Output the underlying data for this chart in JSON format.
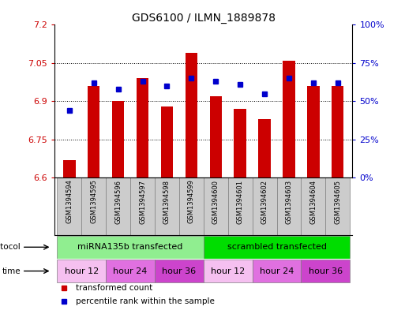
{
  "title": "GDS6100 / ILMN_1889878",
  "samples": [
    "GSM1394594",
    "GSM1394595",
    "GSM1394596",
    "GSM1394597",
    "GSM1394598",
    "GSM1394599",
    "GSM1394600",
    "GSM1394601",
    "GSM1394602",
    "GSM1394603",
    "GSM1394604",
    "GSM1394605"
  ],
  "bar_values": [
    6.67,
    6.96,
    6.9,
    6.99,
    6.88,
    7.09,
    6.92,
    6.87,
    6.83,
    7.06,
    6.96,
    6.96
  ],
  "dot_values": [
    44,
    62,
    58,
    63,
    60,
    65,
    63,
    61,
    55,
    65,
    62,
    62
  ],
  "ymin": 6.6,
  "ymax": 7.2,
  "yticks": [
    6.6,
    6.75,
    6.9,
    7.05,
    7.2
  ],
  "ytick_labels": [
    "6.6",
    "6.75",
    "6.9",
    "7.05",
    "7.2"
  ],
  "right_yticks": [
    0,
    25,
    50,
    75,
    100
  ],
  "right_ytick_labels": [
    "0%",
    "25%",
    "50%",
    "75%",
    "100%"
  ],
  "bar_color": "#cc0000",
  "dot_color": "#0000cc",
  "bar_bottom": 6.6,
  "grid_lines": [
    6.75,
    6.9,
    7.05
  ],
  "protocol_groups": [
    {
      "label": "miRNA135b transfected",
      "start": 0,
      "end": 6,
      "color": "#90ee90"
    },
    {
      "label": "scrambled transfected",
      "start": 6,
      "end": 12,
      "color": "#00dd00"
    }
  ],
  "time_groups": [
    {
      "label": "hour 12",
      "start": 0,
      "end": 2,
      "color": "#f5c0f0"
    },
    {
      "label": "hour 24",
      "start": 2,
      "end": 4,
      "color": "#e070e0"
    },
    {
      "label": "hour 36",
      "start": 4,
      "end": 6,
      "color": "#cc44cc"
    },
    {
      "label": "hour 12",
      "start": 6,
      "end": 8,
      "color": "#f5c0f0"
    },
    {
      "label": "hour 24",
      "start": 8,
      "end": 10,
      "color": "#e070e0"
    },
    {
      "label": "hour 36",
      "start": 10,
      "end": 12,
      "color": "#cc44cc"
    }
  ],
  "legend_items": [
    {
      "label": "transformed count",
      "color": "#cc0000"
    },
    {
      "label": "percentile rank within the sample",
      "color": "#0000cc"
    }
  ],
  "bg_color": "#ffffff",
  "left_tick_color": "#cc0000",
  "right_tick_color": "#0000cc",
  "sample_bg_color": "#cccccc"
}
